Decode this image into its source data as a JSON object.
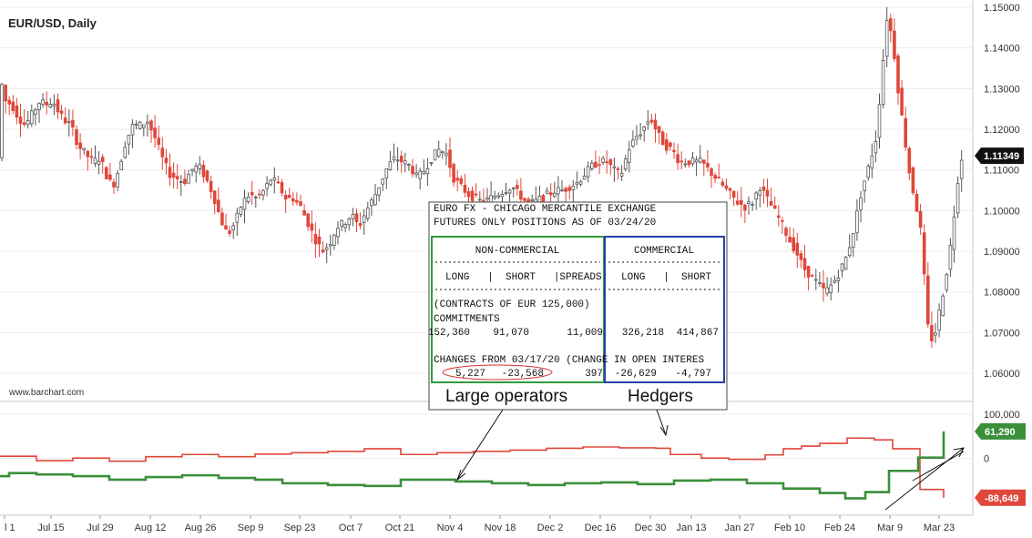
{
  "chart_data": [
    {
      "type": "candlestick",
      "title": "EUR/USD, Daily",
      "source": "www.barchart.com",
      "ylim": [
        1.058,
        1.15
      ],
      "y_ticks": [
        1.06,
        1.07,
        1.08,
        1.09,
        1.1,
        1.11,
        1.12,
        1.13,
        1.14,
        1.15
      ],
      "y_tick_labels": [
        "1.06000",
        "1.07000",
        "1.08000",
        "1.09000",
        "1.10000",
        "1.11000",
        "1.12000",
        "1.13000",
        "1.14000",
        "1.15000"
      ],
      "last_price_label": "1.11349",
      "last_price": 1.11349,
      "path": [
        [
          0,
          1.135
        ],
        [
          8,
          1.127
        ],
        [
          15,
          1.126
        ],
        [
          22,
          1.123
        ],
        [
          30,
          1.121
        ],
        [
          38,
          1.124
        ],
        [
          46,
          1.127
        ],
        [
          52,
          1.126
        ],
        [
          60,
          1.127
        ],
        [
          67,
          1.124
        ],
        [
          74,
          1.122
        ],
        [
          80,
          1.121
        ],
        [
          88,
          1.116
        ],
        [
          96,
          1.114
        ],
        [
          104,
          1.112
        ],
        [
          112,
          1.113
        ],
        [
          120,
          1.108
        ],
        [
          126,
          1.106
        ],
        [
          132,
          1.11
        ],
        [
          140,
          1.117
        ],
        [
          148,
          1.121
        ],
        [
          156,
          1.121
        ],
        [
          164,
          1.122
        ],
        [
          172,
          1.118
        ],
        [
          180,
          1.113
        ],
        [
          188,
          1.109
        ],
        [
          196,
          1.108
        ],
        [
          204,
          1.107
        ],
        [
          212,
          1.11
        ],
        [
          220,
          1.111
        ],
        [
          228,
          1.108
        ],
        [
          236,
          1.104
        ],
        [
          244,
          1.098
        ],
        [
          252,
          1.094
        ],
        [
          260,
          1.097
        ],
        [
          268,
          1.102
        ],
        [
          276,
          1.104
        ],
        [
          284,
          1.103
        ],
        [
          292,
          1.105
        ],
        [
          300,
          1.108
        ],
        [
          308,
          1.106
        ],
        [
          316,
          1.103
        ],
        [
          324,
          1.103
        ],
        [
          332,
          1.101
        ],
        [
          340,
          1.097
        ],
        [
          348,
          1.093
        ],
        [
          356,
          1.09
        ],
        [
          364,
          1.092
        ],
        [
          372,
          1.096
        ],
        [
          380,
          1.097
        ],
        [
          388,
          1.099
        ],
        [
          396,
          1.096
        ],
        [
          404,
          1.1
        ],
        [
          412,
          1.103
        ],
        [
          420,
          1.107
        ],
        [
          428,
          1.111
        ],
        [
          436,
          1.113
        ],
        [
          444,
          1.112
        ],
        [
          452,
          1.111
        ],
        [
          460,
          1.108
        ],
        [
          468,
          1.11
        ],
        [
          476,
          1.113
        ],
        [
          484,
          1.115
        ],
        [
          492,
          1.114
        ],
        [
          500,
          1.108
        ],
        [
          508,
          1.106
        ],
        [
          516,
          1.104
        ],
        [
          524,
          1.103
        ],
        [
          532,
          1.102
        ],
        [
          540,
          1.103
        ],
        [
          548,
          1.104
        ],
        [
          556,
          1.105
        ],
        [
          564,
          1.106
        ],
        [
          572,
          1.104
        ],
        [
          580,
          1.102
        ],
        [
          588,
          1.102
        ],
        [
          596,
          1.103
        ],
        [
          604,
          1.104
        ],
        [
          612,
          1.105
        ],
        [
          620,
          1.105
        ],
        [
          628,
          1.106
        ],
        [
          636,
          1.107
        ],
        [
          644,
          1.109
        ],
        [
          652,
          1.111
        ],
        [
          660,
          1.112
        ],
        [
          668,
          1.112
        ],
        [
          676,
          1.11
        ],
        [
          684,
          1.109
        ],
        [
          692,
          1.115
        ],
        [
          700,
          1.118
        ],
        [
          708,
          1.12
        ],
        [
          716,
          1.123
        ],
        [
          724,
          1.119
        ],
        [
          732,
          1.116
        ],
        [
          740,
          1.115
        ],
        [
          748,
          1.112
        ],
        [
          756,
          1.112
        ],
        [
          764,
          1.112
        ],
        [
          772,
          1.112
        ],
        [
          780,
          1.11
        ],
        [
          788,
          1.108
        ],
        [
          796,
          1.106
        ],
        [
          804,
          1.104
        ],
        [
          812,
          1.102
        ],
        [
          820,
          1.101
        ],
        [
          828,
          1.102
        ],
        [
          836,
          1.106
        ],
        [
          844,
          1.103
        ],
        [
          852,
          1.1
        ],
        [
          860,
          1.097
        ],
        [
          868,
          1.093
        ],
        [
          876,
          1.09
        ],
        [
          884,
          1.086
        ],
        [
          892,
          1.084
        ],
        [
          900,
          1.082
        ],
        [
          908,
          1.08
        ],
        [
          916,
          1.082
        ],
        [
          924,
          1.085
        ],
        [
          932,
          1.089
        ],
        [
          940,
          1.096
        ],
        [
          948,
          1.105
        ],
        [
          956,
          1.111
        ],
        [
          964,
          1.118
        ],
        [
          970,
          1.133
        ],
        [
          976,
          1.148
        ],
        [
          982,
          1.142
        ],
        [
          988,
          1.13
        ],
        [
          994,
          1.12
        ],
        [
          1000,
          1.11
        ],
        [
          1006,
          1.103
        ],
        [
          1012,
          1.097
        ],
        [
          1018,
          1.08
        ],
        [
          1022,
          1.068
        ],
        [
          1028,
          1.069
        ],
        [
          1034,
          1.076
        ],
        [
          1040,
          1.083
        ],
        [
          1046,
          1.092
        ],
        [
          1052,
          1.104
        ],
        [
          1056,
          1.113
        ]
      ]
    },
    {
      "type": "line",
      "ylim": [
        -120000,
        100000
      ],
      "y_ticks": [
        100000,
        0
      ],
      "y_tick_labels": [
        "100,000",
        "0"
      ],
      "series": [
        {
          "color": "#e0473b",
          "end_label": "-88,649",
          "values": [
            [
              0,
              5000
            ],
            [
              40,
              -5000
            ],
            [
              80,
              1000
            ],
            [
              120,
              -6000
            ],
            [
              160,
              4000
            ],
            [
              200,
              9000
            ],
            [
              240,
              4000
            ],
            [
              280,
              10000
            ],
            [
              320,
              13000
            ],
            [
              360,
              16000
            ],
            [
              400,
              22000
            ],
            [
              440,
              9000
            ],
            [
              480,
              13000
            ],
            [
              520,
              16000
            ],
            [
              560,
              19000
            ],
            [
              600,
              23000
            ],
            [
              640,
              26000
            ],
            [
              680,
              24000
            ],
            [
              720,
              23000
            ],
            [
              736,
              9000
            ],
            [
              770,
              1000
            ],
            [
              800,
              -2000
            ],
            [
              840,
              8000
            ],
            [
              860,
              22000
            ],
            [
              880,
              28000
            ],
            [
              900,
              34000
            ],
            [
              930,
              46000
            ],
            [
              960,
              42000
            ],
            [
              980,
              22000
            ],
            [
              1010,
              -70000
            ],
            [
              1036,
              -88649
            ]
          ]
        },
        {
          "color": "#3a8f3a",
          "end_label": "61,290",
          "values": [
            [
              0,
              -40000
            ],
            [
              10,
              -33000
            ],
            [
              40,
              -36000
            ],
            [
              80,
              -40000
            ],
            [
              120,
              -48000
            ],
            [
              160,
              -42000
            ],
            [
              200,
              -38000
            ],
            [
              240,
              -44000
            ],
            [
              280,
              -48000
            ],
            [
              310,
              -56000
            ],
            [
              360,
              -60000
            ],
            [
              400,
              -62000
            ],
            [
              440,
              -48000
            ],
            [
              500,
              -52000
            ],
            [
              540,
              -56000
            ],
            [
              580,
              -60000
            ],
            [
              620,
              -56000
            ],
            [
              660,
              -54000
            ],
            [
              700,
              -58000
            ],
            [
              740,
              -50000
            ],
            [
              780,
              -48000
            ],
            [
              820,
              -56000
            ],
            [
              860,
              -68000
            ],
            [
              900,
              -78000
            ],
            [
              928,
              -90000
            ],
            [
              950,
              -76000
            ],
            [
              976,
              -28000
            ],
            [
              1008,
              2000
            ],
            [
              1036,
              61290
            ]
          ]
        }
      ]
    }
  ],
  "x_labels": [
    "l 1",
    "Jul 15",
    "Jul 29",
    "Aug 12",
    "Aug 26",
    "Sep 9",
    "Sep 23",
    "Oct 7",
    "Oct 21",
    "Nov 4",
    "Nov 18",
    "Dec 2",
    "Dec 16",
    "Dec 30",
    "Jan 13",
    "Jan 27",
    "Feb 10",
    "Feb 24",
    "Mar 9",
    "Mar 23"
  ],
  "report": {
    "title_line1": "EURO FX - CHICAGO MERCANTILE EXCHANGE",
    "title_line2": "FUTURES ONLY POSITIONS AS OF 03/24/20",
    "noncommercial": {
      "header": "NON-COMMERCIAL",
      "cols": "LONG   |  SHORT   |SPREADS",
      "contracts_line": "(CONTRACTS OF EUR 125,000)",
      "commitments_label": "COMMITMENTS",
      "commitments": [
        "152,360",
        "91,070",
        "11,009"
      ],
      "changes_label": "CHANGES FROM 03/17/20 (CHANGE IN OPEN INTERES",
      "changes": [
        "5,227",
        "-23,568",
        "397"
      ],
      "caption": "Large operators"
    },
    "commercial": {
      "header": "COMMERCIAL",
      "cols": "LONG   |  SHORT",
      "commitments": [
        "326,218",
        "414,867"
      ],
      "changes": [
        "-26,629",
        "-4,797"
      ],
      "caption": "Hedgers"
    }
  },
  "colors": {
    "up": "#555555",
    "down": "#e0473b",
    "green_line": "#3a8f3a",
    "box_green": "#2e9c3a",
    "box_blue": "#2a3fa8",
    "price_tag": "#111111"
  }
}
